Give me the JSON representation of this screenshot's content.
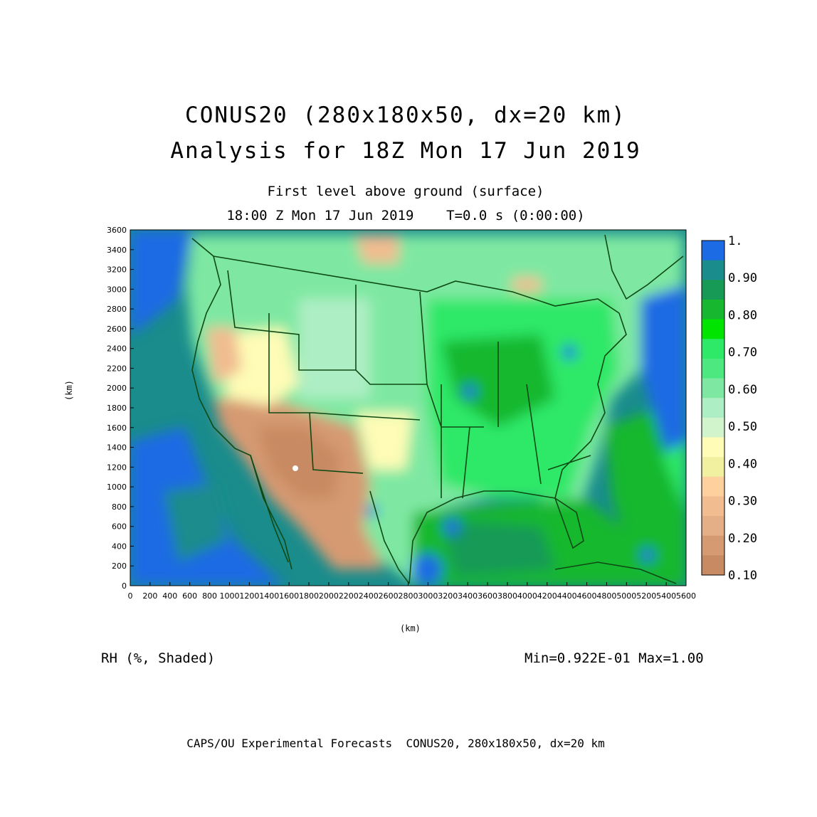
{
  "header": {
    "title_line1": "CONUS20 (280x180x50, dx=20 km)",
    "title_line2": "Analysis for 18Z Mon 17 Jun 2019",
    "level": "First level above ground (surface)",
    "valid_time": "18:00 Z Mon 17 Jun 2019    T=0.0 s (0:00:00)"
  },
  "axes": {
    "x_label": "(km)",
    "y_label": "(km)",
    "x_ticks": [
      "0",
      "200",
      "400",
      "600",
      "800",
      "1000",
      "1200",
      "1400",
      "1600",
      "1800",
      "2000",
      "2200",
      "2400",
      "2600",
      "2800",
      "3000",
      "3200",
      "3400",
      "3600",
      "3800",
      "4000",
      "4200",
      "4400",
      "4600",
      "4800",
      "5000",
      "5200",
      "5400",
      "5600"
    ],
    "y_ticks": [
      "0",
      "200",
      "400",
      "600",
      "800",
      "1000",
      "1200",
      "1400",
      "1600",
      "1800",
      "2000",
      "2200",
      "2400",
      "2600",
      "2800",
      "3000",
      "3200",
      "3400",
      "3600"
    ]
  },
  "colorbar": {
    "labels": [
      "1.",
      "0.90",
      "0.80",
      "0.70",
      "0.60",
      "0.50",
      "0.40",
      "0.30",
      "0.20",
      "0.10"
    ],
    "colors": [
      "#1c6ae4",
      "#1a8c8c",
      "#169a56",
      "#17b82f",
      "#00e400",
      "#2ee868",
      "#4ee880",
      "#7ee8a2",
      "#aeeec4",
      "#d2f4cc",
      "#fefcb6",
      "#f0f0a0",
      "#fdd09e",
      "#f0bc90",
      "#e4ae86",
      "#d69a72",
      "#c88a62"
    ]
  },
  "field": {
    "variable_label": "RH (%, Shaded)",
    "min_max": "Min=0.922E-01 Max=1.00"
  },
  "footer": "CAPS/OU Experimental Forecasts  CONUS20, 280x180x50, dx=20 km"
}
